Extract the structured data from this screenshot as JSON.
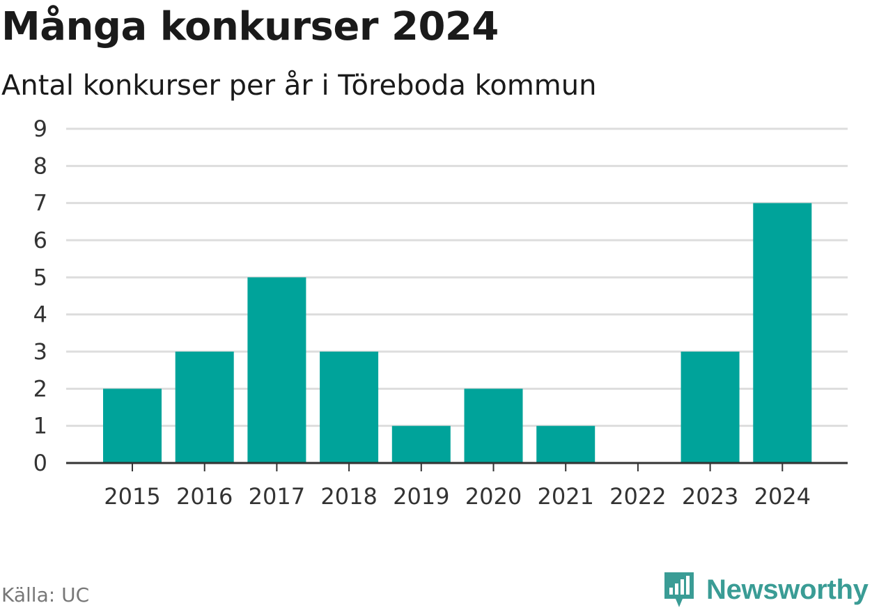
{
  "header": {
    "title": "Många konkurser 2024",
    "subtitle": "Antal konkurser per år i Töreboda kommun"
  },
  "footer": {
    "source": "Källa: UC",
    "brand": "Newsworthy"
  },
  "colors": {
    "bar": "#00a39a",
    "grid": "#dddddd",
    "axis": "#333333",
    "brand": "#3a9c95"
  },
  "chart_data": {
    "type": "bar",
    "title": "Många konkurser 2024",
    "subtitle": "Antal konkurser per år i Töreboda kommun",
    "xlabel": "",
    "ylabel": "",
    "categories": [
      "2015",
      "2016",
      "2017",
      "2018",
      "2019",
      "2020",
      "2021",
      "2022",
      "2023",
      "2024"
    ],
    "values": [
      2,
      3,
      5,
      3,
      1,
      2,
      1,
      0,
      3,
      7
    ],
    "ylim": [
      0,
      9
    ],
    "yticks": [
      0,
      1,
      2,
      3,
      4,
      5,
      6,
      7,
      8,
      9
    ],
    "grid": true,
    "legend": "none"
  }
}
